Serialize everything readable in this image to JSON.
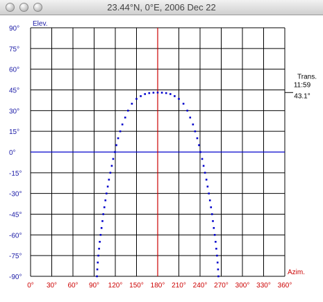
{
  "window": {
    "title": "23.44°N, 0°E, 2006 Dec 22",
    "buttons": [
      "close",
      "minimize",
      "zoom"
    ]
  },
  "colors": {
    "grid": "#000000",
    "axis_labels": "#cc0000",
    "meridian": "#cc0000",
    "horizon": "#0000cc",
    "elev_labels": "#1a1aa6",
    "curve": "#0000cc"
  },
  "chart_data": {
    "type": "scatter",
    "ylabel": "Elev.",
    "xlabel": "Azim.",
    "xlim": [
      0,
      360
    ],
    "ylim": [
      -90,
      90
    ],
    "grid": true,
    "x_ticks": [
      0,
      30,
      60,
      90,
      120,
      150,
      180,
      210,
      240,
      270,
      300,
      330,
      360
    ],
    "y_ticks": [
      90,
      75,
      60,
      45,
      30,
      15,
      0,
      -15,
      -30,
      -45,
      -60,
      -75,
      -90
    ],
    "x_tick_labels": [
      "0°",
      "30°",
      "60°",
      "90°",
      "120°",
      "150°",
      "180°",
      "210°",
      "240°",
      "270°",
      "300°",
      "330°",
      "360°"
    ],
    "y_tick_labels": [
      "90°",
      "75°",
      "60°",
      "45°",
      "30°",
      "15°",
      "0°",
      "-15°",
      "-30°",
      "-45°",
      "-60°",
      "-75°",
      "-90°"
    ],
    "horizon_elevation": 0,
    "transit_azimuth": 180,
    "transit": {
      "label": "Trans.",
      "time": "11:59",
      "elevation_text": "43.1°",
      "elevation": 43.1
    },
    "series": [
      {
        "points": [
          [
            94,
            -90
          ],
          [
            94.5,
            -85
          ],
          [
            95.2,
            -80
          ],
          [
            96,
            -75
          ],
          [
            97,
            -70
          ],
          [
            98,
            -65
          ],
          [
            99.2,
            -60
          ],
          [
            100.5,
            -55
          ],
          [
            101.8,
            -50
          ],
          [
            103,
            -45
          ],
          [
            104.5,
            -40
          ],
          [
            106,
            -35
          ],
          [
            107.5,
            -30
          ],
          [
            109.3,
            -25
          ],
          [
            111,
            -20
          ],
          [
            113,
            -15
          ],
          [
            115,
            -10
          ],
          [
            117,
            -5
          ],
          [
            119.5,
            0
          ],
          [
            121.5,
            5
          ],
          [
            124,
            10
          ],
          [
            127,
            15
          ],
          [
            130,
            20
          ],
          [
            134,
            25
          ],
          [
            138,
            30
          ],
          [
            143.5,
            35
          ],
          [
            150,
            38.5
          ],
          [
            156,
            40.5
          ],
          [
            162,
            42
          ],
          [
            168,
            42.7
          ],
          [
            174,
            43
          ],
          [
            180,
            43.1
          ],
          [
            186,
            43
          ],
          [
            192,
            42.7
          ],
          [
            198,
            42
          ],
          [
            204,
            40.5
          ],
          [
            210,
            38.5
          ],
          [
            216.5,
            35
          ],
          [
            222,
            30
          ],
          [
            226,
            25
          ],
          [
            230,
            20
          ],
          [
            233,
            15
          ],
          [
            236,
            10
          ],
          [
            238.5,
            5
          ],
          [
            240.5,
            0
          ],
          [
            243,
            -5
          ],
          [
            245,
            -10
          ],
          [
            247,
            -15
          ],
          [
            249,
            -20
          ],
          [
            250.7,
            -25
          ],
          [
            252.5,
            -30
          ],
          [
            254,
            -35
          ],
          [
            255.5,
            -40
          ],
          [
            257,
            -45
          ],
          [
            258.2,
            -50
          ],
          [
            259.5,
            -55
          ],
          [
            260.8,
            -60
          ],
          [
            262,
            -65
          ],
          [
            263,
            -70
          ],
          [
            264,
            -75
          ],
          [
            264.8,
            -80
          ],
          [
            265.5,
            -85
          ],
          [
            266,
            -90
          ]
        ]
      }
    ]
  }
}
